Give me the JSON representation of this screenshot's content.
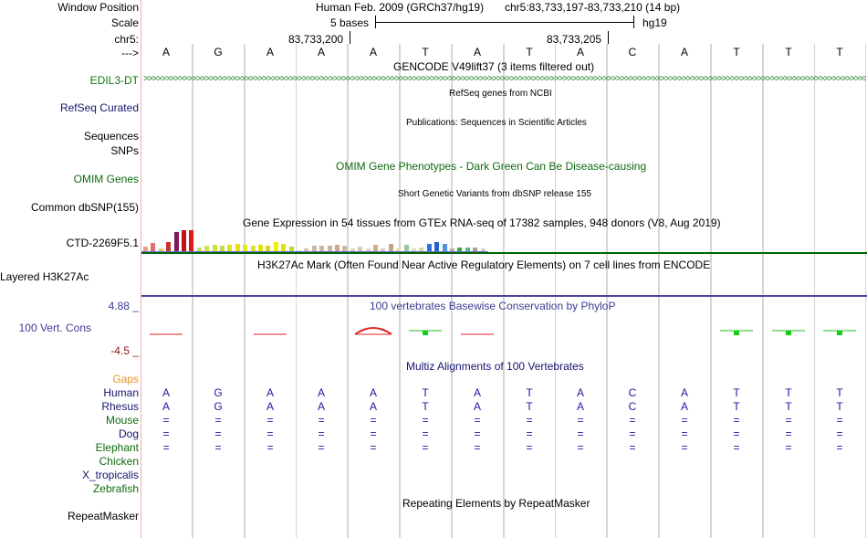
{
  "header": {
    "window_position_label": "Window Position",
    "scale_label": "Scale",
    "chrom_label": "chr5:",
    "strand_label": "--->",
    "assembly_text": "Human Feb. 2009 (GRCh37/hg19)",
    "position_text": "chr5:83,733,197-83,733,210 (14 bp)",
    "scale_text": "5 bases",
    "db_text": "hg19",
    "coord1": "83,733,200",
    "coord2": "83,733,205"
  },
  "sequence": [
    "A",
    "G",
    "A",
    "A",
    "A",
    "T",
    "A",
    "T",
    "A",
    "C",
    "A",
    "T",
    "T",
    "T"
  ],
  "tracks": {
    "gencode": {
      "title": "GENCODE V49lift37 (3 items filtered out)",
      "label": "EDIL3-DT",
      "color": "#0e7a0e"
    },
    "refseq": {
      "title": "RefSeq genes from NCBI",
      "label": "RefSeq Curated",
      "color": "#14146e"
    },
    "publications": {
      "title": "Publications: Sequences in Scientific Articles",
      "label": "Sequences"
    },
    "snps_label": "SNPs",
    "omim": {
      "title": "OMIM Gene Phenotypes - Dark Green Can Be Disease-causing",
      "label": "OMIM Genes",
      "color": "#0e6a0e"
    },
    "dbsnp": {
      "title": "Short Genetic Variants from dbSNP release 155",
      "label": "Common dbSNP(155)"
    },
    "gtex": {
      "title": "Gene Expression in 54 tissues from GTEx RNA-seq of 17382 samples, 948 donors (V8, Aug 2019)",
      "label": "CTD-2269F5.1"
    },
    "h3k27ac": {
      "title": "H3K27Ac Mark (Often Found Near Active Regulatory Elements) on 7 cell lines from ENCODE",
      "label": "Layered H3K27Ac"
    },
    "phylop": {
      "title": "100 vertebrates Basewise Conservation by PhyloP",
      "label": "100 Vert. Cons",
      "max": "4.88 _",
      "min": "-4.5 _",
      "color": "#3c3c96"
    },
    "multiz": {
      "title": "Multiz Alignments of 100 Vertebrates",
      "color": "#14146e"
    },
    "gaps_label": "Gaps",
    "species": [
      {
        "name": "Human",
        "color": "#14146e"
      },
      {
        "name": "Rhesus",
        "color": "#14146e"
      },
      {
        "name": "Mouse",
        "color": "#0e6a0e"
      },
      {
        "name": "Dog",
        "color": "#14146e"
      },
      {
        "name": "Elephant",
        "color": "#0e6a0e"
      },
      {
        "name": "Chicken",
        "color": "#0e6a0e"
      },
      {
        "name": "X_tropicalis",
        "color": "#14146e"
      },
      {
        "name": "Zebrafish",
        "color": "#0e6a0e"
      }
    ],
    "repeatmasker": {
      "title": "Repeating Elements by RepeatMasker",
      "label": "RepeatMasker"
    }
  },
  "alignment": {
    "rhesus": [
      "A",
      "G",
      "A",
      "A",
      "A",
      "T",
      "A",
      "T",
      "A",
      "C",
      "A",
      "T",
      "T",
      "T"
    ],
    "mouse": [
      "=",
      "=",
      "=",
      "=",
      "=",
      "=",
      "=",
      "=",
      "=",
      "=",
      "=",
      "=",
      "=",
      "="
    ],
    "dog": [
      "=",
      "=",
      "=",
      "=",
      "=",
      "=",
      "=",
      "=",
      "=",
      "=",
      "=",
      "=",
      "=",
      "="
    ],
    "elephant": [
      "=",
      "=",
      "=",
      "=",
      "=",
      "=",
      "=",
      "=",
      "=",
      "=",
      "=",
      "=",
      "=",
      "="
    ]
  },
  "gtex_bars": [
    {
      "value": 5,
      "color": "#e8a080"
    },
    {
      "value": 9,
      "color": "#e07070"
    },
    {
      "value": 3,
      "color": "#f0c060"
    },
    {
      "value": 10,
      "color": "#d03030"
    },
    {
      "value": 20,
      "color": "#7a1a5a"
    },
    {
      "value": 22,
      "color": "#c01010"
    },
    {
      "value": 22,
      "color": "#e01818"
    },
    {
      "value": 4,
      "color": "#c8e060"
    },
    {
      "value": 6,
      "color": "#d0e050"
    },
    {
      "value": 7,
      "color": "#d8e040"
    },
    {
      "value": 6,
      "color": "#c0d850"
    },
    {
      "value": 7,
      "color": "#e0e020"
    },
    {
      "value": 8,
      "color": "#e8e010"
    },
    {
      "value": 7,
      "color": "#e8e820"
    },
    {
      "value": 6,
      "color": "#e0e030"
    },
    {
      "value": 7,
      "color": "#e8e000"
    },
    {
      "value": 6,
      "color": "#d8d820"
    },
    {
      "value": 10,
      "color": "#f0f000"
    },
    {
      "value": 8,
      "color": "#e0e010"
    },
    {
      "value": 5,
      "color": "#b0e030"
    },
    {
      "value": 1,
      "color": "#d8d8d8"
    },
    {
      "value": 3,
      "color": "#d0c0b0"
    },
    {
      "value": 6,
      "color": "#d0b8a8"
    },
    {
      "value": 6,
      "color": "#c8b8a8"
    },
    {
      "value": 6,
      "color": "#d0b0a0"
    },
    {
      "value": 7,
      "color": "#c8a890"
    },
    {
      "value": 6,
      "color": "#d0b8a0"
    },
    {
      "value": 3,
      "color": "#e0d0c0"
    },
    {
      "value": 5,
      "color": "#d8c8b8"
    },
    {
      "value": 3,
      "color": "#e0d0d0"
    },
    {
      "value": 7,
      "color": "#c8b090"
    },
    {
      "value": 3,
      "color": "#d8c8c0"
    },
    {
      "value": 8,
      "color": "#c0a880"
    },
    {
      "value": 3,
      "color": "#e8d8b0"
    },
    {
      "value": 7,
      "color": "#a0c0a0"
    },
    {
      "value": 3,
      "color": "#d0e0d0"
    },
    {
      "value": 4,
      "color": "#c0e0a0"
    },
    {
      "value": 8,
      "color": "#3070e0"
    },
    {
      "value": 10,
      "color": "#2060d0"
    },
    {
      "value": 8,
      "color": "#5090e0"
    },
    {
      "value": 3,
      "color": "#b0b0b0"
    },
    {
      "value": 4,
      "color": "#30b030"
    },
    {
      "value": 4,
      "color": "#50c080"
    },
    {
      "value": 4,
      "color": "#a0a0a0"
    },
    {
      "value": 3,
      "color": "#d8c8d0"
    }
  ],
  "phylop_values": [
    -0.2,
    0,
    -0.2,
    0,
    -0.8,
    0.3,
    -0.4,
    0,
    0,
    0,
    0,
    0.3,
    0.2,
    0.3
  ],
  "colors": {
    "grid": "#d6d6d6",
    "signal_line": "#006400",
    "gtex_border": "#7070c8",
    "gap_color": "#e8931e"
  }
}
